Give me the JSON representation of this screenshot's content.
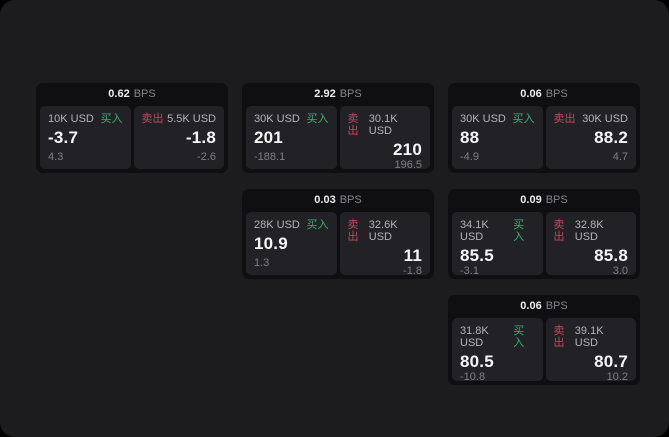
{
  "colors": {
    "outer_background": "#000000",
    "panel_background": "#1c1c1e",
    "card_background": "#0f0f11",
    "tile_background": "#222226",
    "text_primary": "#f5f5f6",
    "text_label": "#b4b4b8",
    "text_muted": "#7f7f84",
    "bps_unit_gray": "#85858a",
    "buy_green": "#3dae75",
    "sell_red": "#c2485f"
  },
  "labels": {
    "bps_suffix": "BPS",
    "buy": "买入",
    "sell": "卖出"
  },
  "cards": [
    {
      "bps": "0.62",
      "buy": {
        "size": "10K USD",
        "price": "-3.7",
        "delta": "4.3"
      },
      "sell": {
        "size": "5.5K USD",
        "price": "-1.8",
        "delta": "-2.6"
      }
    },
    {
      "bps": "2.92",
      "buy": {
        "size": "30K USD",
        "price": "201",
        "delta": "-188.1"
      },
      "sell": {
        "size": "30.1K USD",
        "price": "210",
        "delta": "196.5"
      }
    },
    {
      "bps": "0.06",
      "buy": {
        "size": "30K USD",
        "price": "88",
        "delta": "-4.9"
      },
      "sell": {
        "size": "30K USD",
        "price": "88.2",
        "delta": "4.7"
      }
    },
    {
      "bps": "0.03",
      "buy": {
        "size": "28K USD",
        "price": "10.9",
        "delta": "1.3"
      },
      "sell": {
        "size": "32.6K USD",
        "price": "11",
        "delta": "-1.8"
      }
    },
    {
      "bps": "0.09",
      "buy": {
        "size": "34.1K USD",
        "price": "85.5",
        "delta": "-3.1"
      },
      "sell": {
        "size": "32.8K USD",
        "price": "85.8",
        "delta": "3.0"
      }
    },
    {
      "bps": "0.06",
      "buy": {
        "size": "31.8K USD",
        "price": "80.5",
        "delta": "-10.8"
      },
      "sell": {
        "size": "39.1K USD",
        "price": "80.7",
        "delta": "10.2"
      }
    }
  ]
}
